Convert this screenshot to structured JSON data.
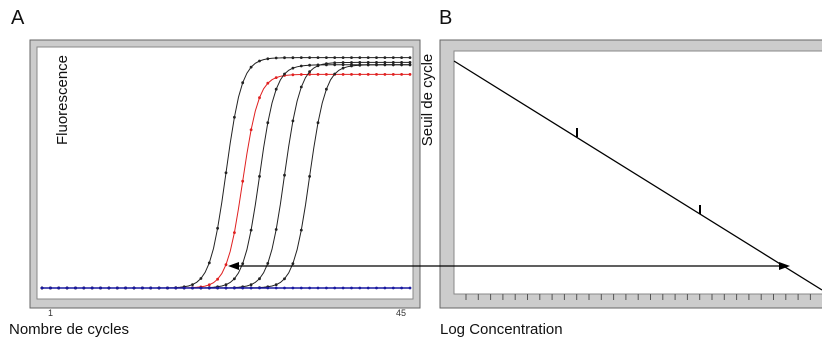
{
  "panels": {
    "a": {
      "letter": "A",
      "ylabel": "Fluorescence",
      "xlabel": "Nombre de cycles",
      "xtick_first": "1",
      "xtick_last": "45"
    },
    "b": {
      "letter": "B",
      "ylabel": "Seuil de cycle",
      "xlabel": "Log Concentration"
    }
  },
  "colors": {
    "frame": "#8c8c8c",
    "curve": "#222222",
    "highlight": "#e02020",
    "baseline": "#1a1aa0",
    "arrow": "#000000"
  },
  "chart_data": [
    {
      "type": "line",
      "title": "",
      "xlabel": "Nombre de cycles",
      "ylabel": "Fluorescence",
      "xlim": [
        1,
        45
      ],
      "x_ticks_shown": [
        "1",
        "45"
      ],
      "series": [
        {
          "color": "#222222",
          "midpoint_cycle": 23,
          "plateau_fraction": 0.96
        },
        {
          "color": "#e02020",
          "midpoint_cycle": 25,
          "plateau_fraction": 0.89
        },
        {
          "color": "#222222",
          "midpoint_cycle": 27,
          "plateau_fraction": 0.93
        },
        {
          "color": "#222222",
          "midpoint_cycle": 30,
          "plateau_fraction": 0.94
        },
        {
          "color": "#222222",
          "midpoint_cycle": 33,
          "plateau_fraction": 0.93
        },
        {
          "color": "#1a1aa0",
          "midpoint_cycle": null,
          "plateau_fraction": 0.0
        }
      ]
    },
    {
      "type": "line",
      "title": "",
      "xlabel": "Log Concentration",
      "ylabel": "Seuil de cycle",
      "series": [
        {
          "color": "#000000",
          "line": "decreasing standard curve",
          "marked_points": 2
        }
      ]
    }
  ]
}
